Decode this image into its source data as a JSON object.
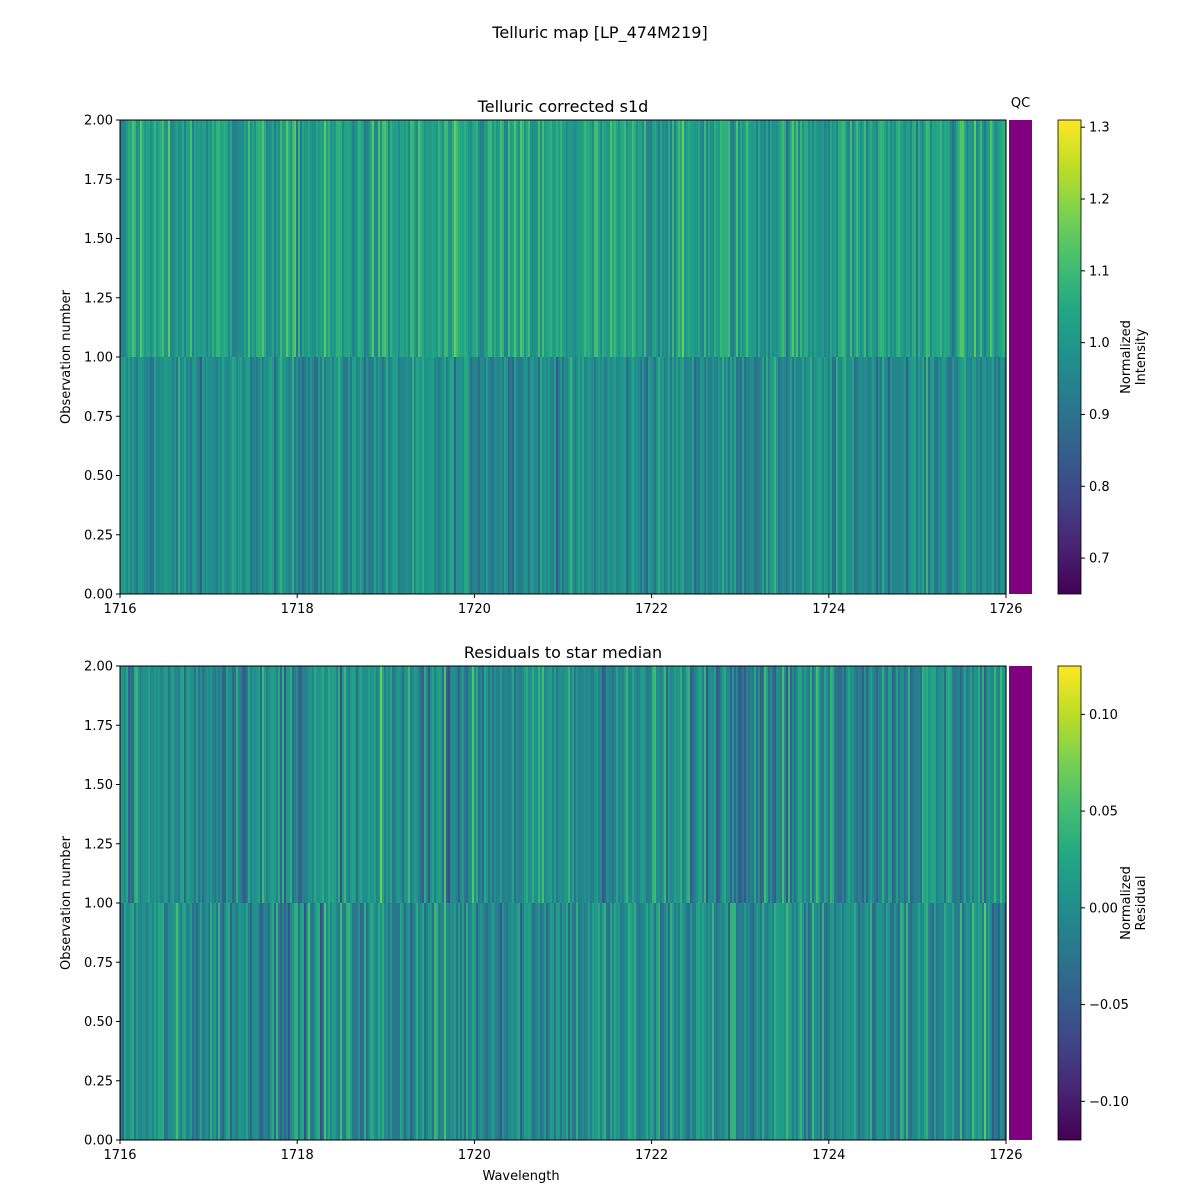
{
  "figure": {
    "title": "Telluric map [LP_474M219]"
  },
  "chart_data": [
    {
      "type": "heatmap",
      "title": "Telluric corrected s1d",
      "xlabel": "",
      "ylabel": "Observation number",
      "xlim": [
        1716,
        1726
      ],
      "ylim": [
        0,
        2
      ],
      "x_ticks": [
        "1716",
        "1718",
        "1720",
        "1722",
        "1724",
        "1726"
      ],
      "y_ticks": [
        "0.00",
        "0.25",
        "0.50",
        "0.75",
        "1.00",
        "1.25",
        "1.50",
        "1.75",
        "2.00"
      ],
      "rows": [
        {
          "observation": 0,
          "y_range": [
            0,
            1
          ],
          "value_mean": 0.97,
          "value_spread": 0.07
        },
        {
          "observation": 1,
          "y_range": [
            1,
            2
          ],
          "value_mean": 1.02,
          "value_spread": 0.08
        }
      ],
      "colormap": "viridis",
      "colorbar": {
        "label": "Normalized Intensity",
        "label_lines": [
          "Normalized",
          "Intensity"
        ],
        "range": [
          0.65,
          1.31
        ],
        "ticks": [
          "0.7",
          "0.8",
          "0.9",
          "1.0",
          "1.1",
          "1.2",
          "1.3"
        ]
      },
      "qc": {
        "label": "QC",
        "color": "#800080"
      }
    },
    {
      "type": "heatmap",
      "title": "Residuals to star median",
      "xlabel": "Wavelength",
      "ylabel": "Observation number",
      "xlim": [
        1716,
        1726
      ],
      "ylim": [
        0,
        2
      ],
      "x_ticks": [
        "1716",
        "1718",
        "1720",
        "1722",
        "1724",
        "1726"
      ],
      "y_ticks": [
        "0.00",
        "0.25",
        "0.50",
        "0.75",
        "1.00",
        "1.25",
        "1.50",
        "1.75",
        "2.00"
      ],
      "rows": [
        {
          "observation": 0,
          "y_range": [
            0,
            1
          ],
          "value_mean": 0.0,
          "value_spread": 0.035
        },
        {
          "observation": 1,
          "y_range": [
            1,
            2
          ],
          "value_mean": 0.0,
          "value_spread": 0.035
        }
      ],
      "colormap": "viridis",
      "colorbar": {
        "label": "Normalized Residual",
        "label_lines": [
          "Normalized",
          "Residual"
        ],
        "range": [
          -0.12,
          0.125
        ],
        "ticks": [
          "0.10",
          "0.05",
          "0.00",
          "−0.05",
          "−0.10"
        ]
      },
      "qc": {
        "label": "",
        "color": "#800080"
      }
    }
  ]
}
